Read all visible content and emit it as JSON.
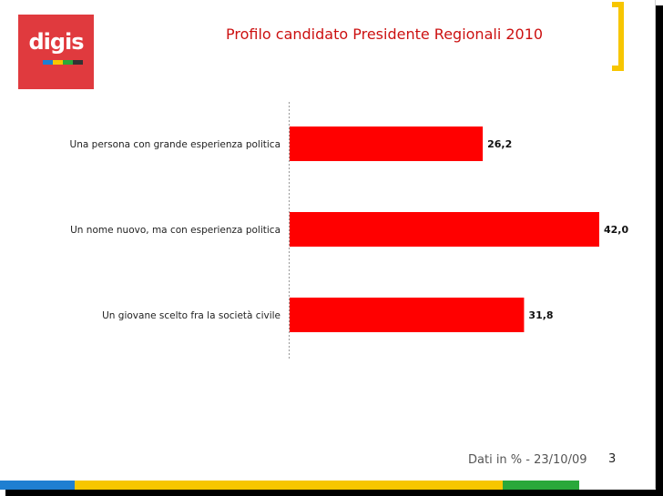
{
  "slide": {
    "logo_text": "digis",
    "title": "Profilo candidato Presidente Regionali 2010",
    "footer_note": "Dati in % - 23/10/09",
    "page_number": "3"
  },
  "colors": {
    "logo_bg": "#e03a3e",
    "bar": "#ff0000",
    "title": "#cc1111",
    "bracket": "#f7c600",
    "stripe_blue": "#1f7fd1",
    "stripe_yellow": "#f7c600",
    "stripe_green": "#2aa83a",
    "stripe_dark": "#333333"
  },
  "chart_data": {
    "type": "bar",
    "orientation": "horizontal",
    "categories": [
      "Una persona con grande esperienza politica",
      "Un nome nuovo, ma con esperienza politica",
      "Un giovane scelto fra la società civile"
    ],
    "values": [
      26.2,
      42.0,
      31.8
    ],
    "value_labels": [
      "26,2",
      "42,0",
      "31,8"
    ],
    "xlim": [
      0,
      45
    ],
    "grid": false,
    "legend": "none"
  }
}
